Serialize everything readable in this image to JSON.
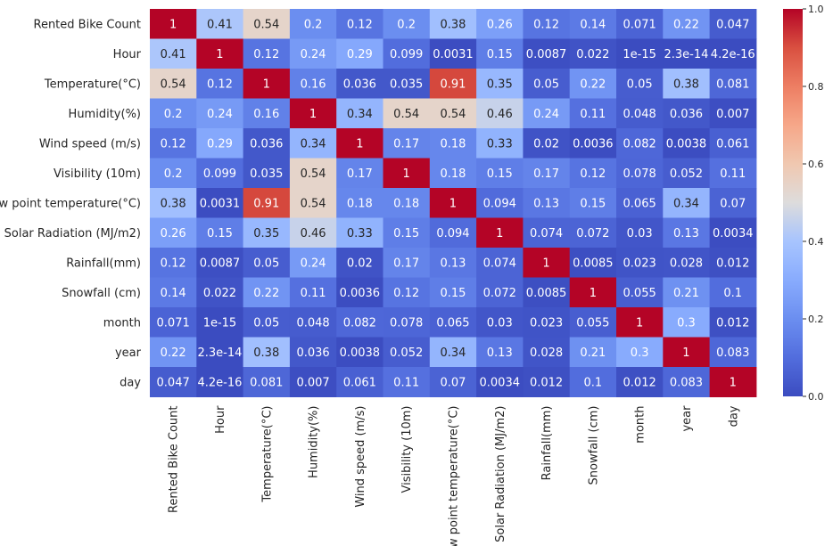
{
  "chart_data": {
    "type": "heatmap",
    "title": "",
    "colormap": "coolwarm",
    "annotated": true,
    "vmin": 0.0,
    "vmax": 1.0,
    "colorbar_ticks": [
      "0.0",
      "0.2",
      "0.4",
      "0.6",
      "0.8",
      "1.0"
    ],
    "labels": [
      "Rented Bike Count",
      "Hour",
      "Temperature(°C)",
      "Humidity(%)",
      "Wind speed (m/s)",
      "Visibility (10m)",
      "Dew point temperature(°C)",
      "Solar Radiation (MJ/m2)",
      "Rainfall(mm)",
      "Snowfall (cm)",
      "month",
      "year",
      "day"
    ],
    "cells": [
      [
        "1",
        "0.41",
        "0.54",
        "0.2",
        "0.12",
        "0.2",
        "0.38",
        "0.26",
        "0.12",
        "0.14",
        "0.071",
        "0.22",
        "0.047"
      ],
      [
        "0.41",
        "1",
        "0.12",
        "0.24",
        "0.29",
        "0.099",
        "0.0031",
        "0.15",
        "0.0087",
        "0.022",
        "1e-15",
        "2.3e-14",
        "4.2e-16"
      ],
      [
        "0.54",
        "0.12",
        "1",
        "0.16",
        "0.036",
        "0.035",
        "0.91",
        "0.35",
        "0.05",
        "0.22",
        "0.05",
        "0.38",
        "0.081"
      ],
      [
        "0.2",
        "0.24",
        "0.16",
        "1",
        "0.34",
        "0.54",
        "0.54",
        "0.46",
        "0.24",
        "0.11",
        "0.048",
        "0.036",
        "0.007"
      ],
      [
        "0.12",
        "0.29",
        "0.036",
        "0.34",
        "1",
        "0.17",
        "0.18",
        "0.33",
        "0.02",
        "0.0036",
        "0.082",
        "0.0038",
        "0.061"
      ],
      [
        "0.2",
        "0.099",
        "0.035",
        "0.54",
        "0.17",
        "1",
        "0.18",
        "0.15",
        "0.17",
        "0.12",
        "0.078",
        "0.052",
        "0.11"
      ],
      [
        "0.38",
        "0.0031",
        "0.91",
        "0.54",
        "0.18",
        "0.18",
        "1",
        "0.094",
        "0.13",
        "0.15",
        "0.065",
        "0.34",
        "0.07"
      ],
      [
        "0.26",
        "0.15",
        "0.35",
        "0.46",
        "0.33",
        "0.15",
        "0.094",
        "1",
        "0.074",
        "0.072",
        "0.03",
        "0.13",
        "0.0034"
      ],
      [
        "0.12",
        "0.0087",
        "0.05",
        "0.24",
        "0.02",
        "0.17",
        "0.13",
        "0.074",
        "1",
        "0.0085",
        "0.023",
        "0.028",
        "0.012"
      ],
      [
        "0.14",
        "0.022",
        "0.22",
        "0.11",
        "0.0036",
        "0.12",
        "0.15",
        "0.072",
        "0.0085",
        "1",
        "0.055",
        "0.21",
        "0.1"
      ],
      [
        "0.071",
        "1e-15",
        "0.05",
        "0.048",
        "0.082",
        "0.078",
        "0.065",
        "0.03",
        "0.023",
        "0.055",
        "1",
        "0.3",
        "0.012"
      ],
      [
        "0.22",
        "2.3e-14",
        "0.38",
        "0.036",
        "0.0038",
        "0.052",
        "0.34",
        "0.13",
        "0.028",
        "0.21",
        "0.3",
        "1",
        "0.083"
      ],
      [
        "0.047",
        "4.2e-16",
        "0.081",
        "0.007",
        "0.061",
        "0.11",
        "0.07",
        "0.0034",
        "0.012",
        "0.1",
        "0.012",
        "0.083",
        "1"
      ]
    ]
  }
}
